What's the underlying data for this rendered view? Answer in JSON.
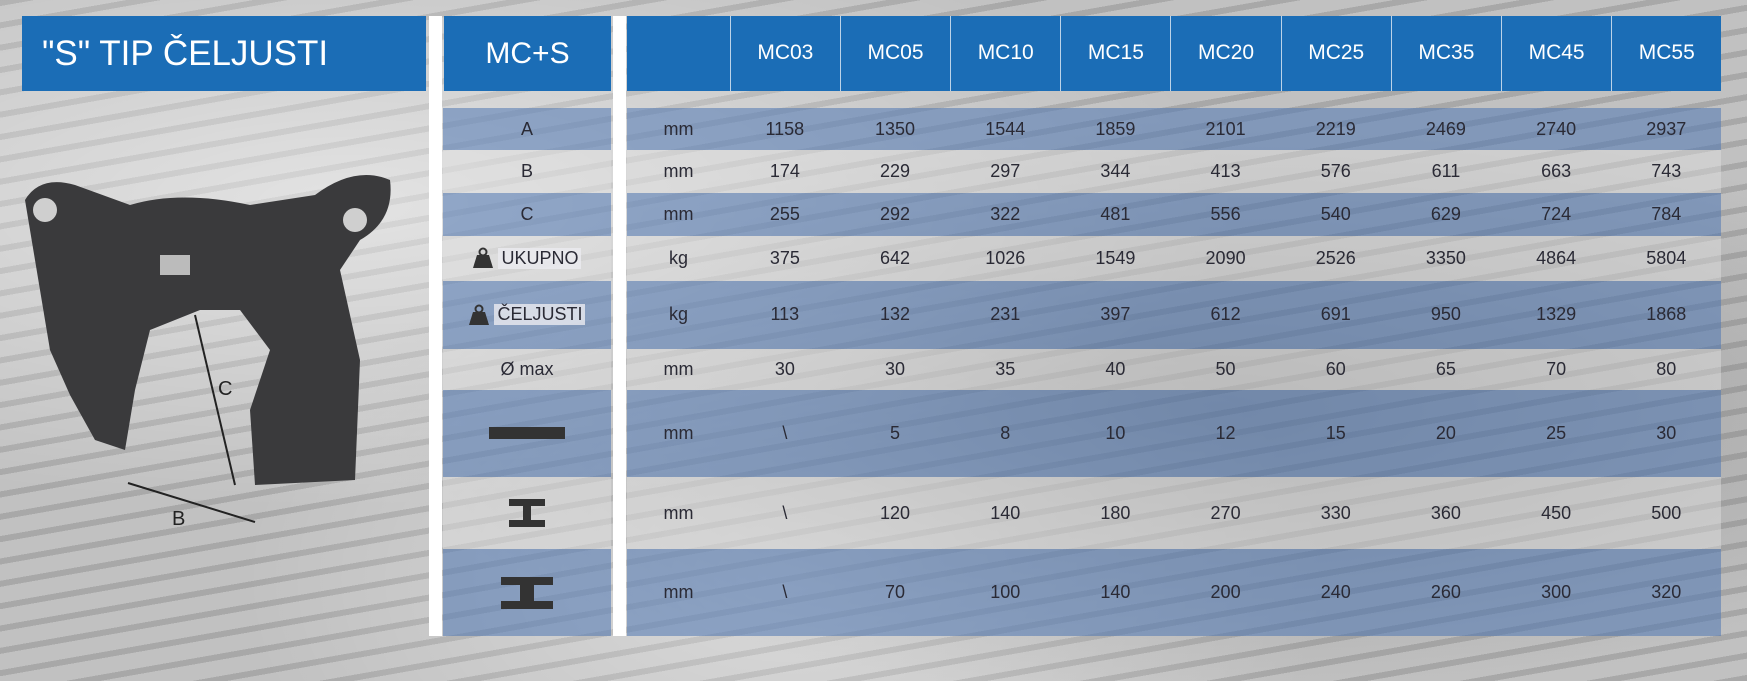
{
  "header": {
    "title": "\"S\" TIP ČELJUSTI",
    "model_label": "MC+S"
  },
  "image": {
    "labels": [
      "C",
      "B"
    ]
  },
  "table": {
    "columns": [
      "MC03",
      "MC05",
      "MC10",
      "MC15",
      "MC20",
      "MC25",
      "MC35",
      "MC45",
      "MC55"
    ],
    "rows": [
      {
        "label": "A",
        "unit": "mm",
        "values": [
          1158,
          1350,
          1544,
          1859,
          2101,
          2219,
          2469,
          2740,
          2937
        ]
      },
      {
        "label": "B",
        "unit": "mm",
        "values": [
          174,
          229,
          297,
          344,
          413,
          576,
          611,
          663,
          743
        ]
      },
      {
        "label": "C",
        "unit": "mm",
        "values": [
          255,
          292,
          322,
          481,
          556,
          540,
          629,
          724,
          784
        ]
      },
      {
        "label": "UKUPNO",
        "unit": "kg",
        "values": [
          375,
          642,
          1026,
          1549,
          2090,
          2526,
          3350,
          4864,
          5804
        ]
      },
      {
        "label": "ČELJUSTI",
        "unit": "kg",
        "values": [
          113,
          132,
          231,
          397,
          612,
          691,
          950,
          1329,
          1868
        ]
      },
      {
        "label": "Ø  max",
        "unit": "mm",
        "values": [
          30,
          30,
          35,
          40,
          50,
          60,
          65,
          70,
          80
        ]
      },
      {
        "unit": "mm",
        "values": [
          "\\",
          5,
          8,
          10,
          12,
          15,
          20,
          25,
          30
        ]
      },
      {
        "unit": "mm",
        "values": [
          "\\",
          120,
          140,
          180,
          270,
          330,
          360,
          450,
          500
        ]
      },
      {
        "unit": "mm",
        "values": [
          "\\",
          70,
          100,
          140,
          200,
          240,
          260,
          300,
          320
        ]
      }
    ]
  }
}
